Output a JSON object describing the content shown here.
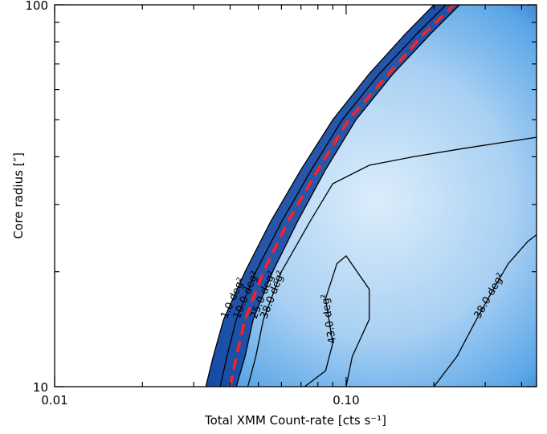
{
  "chart_data": {
    "type": "heatmap",
    "title": "",
    "xlabel": "Total XMM Count-rate [cts s⁻¹]",
    "ylabel": "Core radius [″]",
    "xscale": "log",
    "yscale": "log",
    "xlim": [
      0.01,
      0.45
    ],
    "ylim": [
      10,
      100
    ],
    "xticks": [
      {
        "value": 0.01,
        "label": "0.01"
      },
      {
        "value": 0.1,
        "label": "0.10"
      }
    ],
    "yticks": [
      {
        "value": 10,
        "label": "10"
      },
      {
        "value": 100,
        "label": "100"
      }
    ],
    "colormap": {
      "low": "#0b3d9a",
      "mid": "#5aa6e8",
      "high": "#dcedfb"
    },
    "contours": [
      {
        "level_label": "1.0 deg²",
        "points": [
          [
            0.033,
            10
          ],
          [
            0.035,
            12
          ],
          [
            0.038,
            15
          ],
          [
            0.045,
            20
          ],
          [
            0.055,
            27
          ],
          [
            0.07,
            37
          ],
          [
            0.09,
            50
          ],
          [
            0.12,
            66
          ],
          [
            0.16,
            84
          ],
          [
            0.2,
            100
          ]
        ]
      },
      {
        "level_label": "10.0 deg²",
        "points": [
          [
            0.037,
            10
          ],
          [
            0.039,
            12
          ],
          [
            0.042,
            15
          ],
          [
            0.049,
            20
          ],
          [
            0.06,
            27
          ],
          [
            0.076,
            37
          ],
          [
            0.097,
            50
          ],
          [
            0.13,
            66
          ],
          [
            0.175,
            84
          ],
          [
            0.22,
            100
          ]
        ]
      },
      {
        "level_label": "25.0 deg²",
        "points": [
          [
            0.042,
            10
          ],
          [
            0.045,
            12
          ],
          [
            0.048,
            15
          ],
          [
            0.056,
            20
          ],
          [
            0.068,
            27
          ],
          [
            0.085,
            37
          ],
          [
            0.108,
            50
          ],
          [
            0.145,
            66
          ],
          [
            0.195,
            84
          ],
          [
            0.245,
            100
          ]
        ]
      },
      {
        "level_label": "38.0 deg²",
        "points": [
          [
            0.046,
            10
          ],
          [
            0.049,
            12
          ],
          [
            0.052,
            15
          ],
          [
            0.06,
            20
          ],
          [
            0.075,
            27
          ],
          [
            0.09,
            34
          ],
          [
            0.12,
            38
          ],
          [
            0.17,
            40
          ],
          [
            0.25,
            42
          ],
          [
            0.45,
            45
          ]
        ]
      },
      {
        "level_label": "43.0 deg²",
        "points": [
          [
            0.072,
            10
          ],
          [
            0.085,
            11
          ],
          [
            0.09,
            13
          ],
          [
            0.085,
            17
          ],
          [
            0.093,
            21
          ],
          [
            0.1,
            22
          ],
          [
            0.12,
            18
          ],
          [
            0.12,
            15
          ],
          [
            0.105,
            12
          ],
          [
            0.1,
            10
          ]
        ]
      },
      {
        "level_label": "38.0 deg²",
        "points": [
          [
            0.2,
            10
          ],
          [
            0.24,
            12
          ],
          [
            0.28,
            15
          ],
          [
            0.32,
            18
          ],
          [
            0.36,
            21
          ],
          [
            0.42,
            24
          ],
          [
            0.45,
            25
          ]
        ]
      }
    ],
    "selection_line": {
      "color": "#ff2020",
      "style": "dashed",
      "points": [
        [
          0.04,
          10
        ],
        [
          0.042,
          12
        ],
        [
          0.045,
          15
        ],
        [
          0.052,
          20
        ],
        [
          0.063,
          27
        ],
        [
          0.08,
          37
        ],
        [
          0.102,
          50
        ],
        [
          0.14,
          66
        ],
        [
          0.185,
          84
        ],
        [
          0.235,
          100
        ]
      ]
    }
  }
}
